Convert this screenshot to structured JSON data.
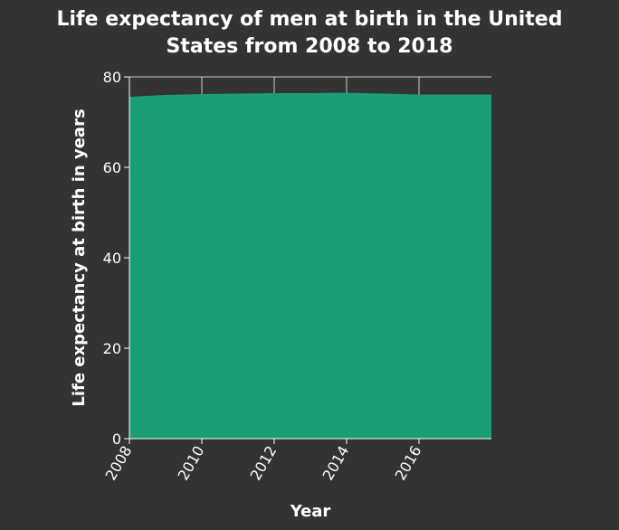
{
  "chart_data": {
    "type": "area",
    "title_lines": [
      "Life expectancy of men at birth in the United",
      "States from 2008 to 2018"
    ],
    "xlabel": "Year",
    "ylabel": "Life expectancy at birth in years",
    "x": [
      2008,
      2009,
      2010,
      2011,
      2012,
      2013,
      2014,
      2015,
      2016,
      2017,
      2018
    ],
    "series": [
      {
        "values": [
          75.6,
          76.0,
          76.2,
          76.3,
          76.4,
          76.4,
          76.5,
          76.3,
          76.1,
          76.1,
          76.1
        ]
      }
    ],
    "xlim": [
      2008,
      2018
    ],
    "ylim": [
      0,
      80
    ],
    "xticks": [
      2008,
      2010,
      2012,
      2014,
      2016
    ],
    "yticks": [
      0,
      20,
      40,
      60,
      80
    ],
    "grid": true,
    "colors": {
      "background": "#333333",
      "plot_background": "#333333",
      "area_fill": "#1b9e77",
      "grid": "#ffffff",
      "text": "#ffffff"
    }
  }
}
